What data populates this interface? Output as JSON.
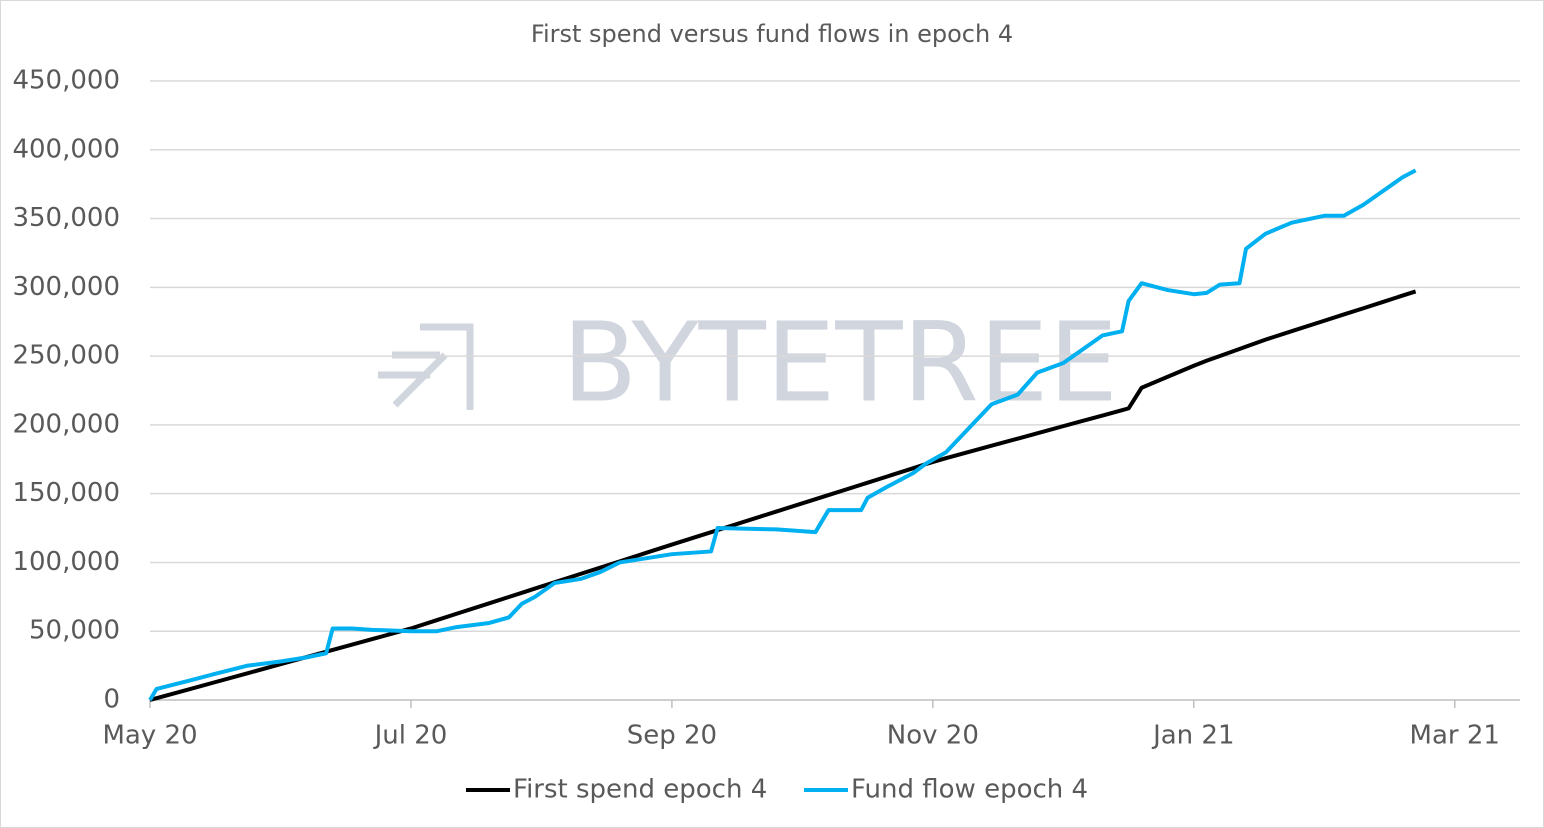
{
  "chart_data": {
    "type": "line",
    "title": "First spend versus fund flows in epoch 4",
    "watermark": "BYTETREE",
    "x": [
      0,
      0.05,
      0.3,
      0.5,
      0.75,
      1.0,
      1.2,
      1.35,
      1.4,
      1.55,
      1.7,
      2.0,
      2.2,
      2.35,
      2.6,
      2.75,
      2.85,
      2.95,
      3.1,
      3.3,
      3.45,
      3.6,
      3.8,
      4.0,
      4.3,
      4.35,
      4.8,
      5.1,
      5.2,
      5.45,
      5.5,
      5.65,
      5.85,
      5.95,
      6.1,
      6.3,
      6.45,
      6.65,
      6.8,
      7.0,
      7.15,
      7.3,
      7.45,
      7.5,
      7.6,
      7.8,
      8.0,
      8.1,
      8.2,
      8.35,
      8.4,
      8.55,
      8.75,
      9.0,
      9.15,
      9.3,
      9.45,
      9.6,
      9.7
    ],
    "series": [
      {
        "name": "First spend epoch 4",
        "color": "#000000",
        "values": [
          0,
          1300,
          7800,
          13000,
          19500,
          26000,
          31200,
          35100,
          36400,
          40300,
          44200,
          52000,
          58100,
          62700,
          70300,
          74900,
          77900,
          81000,
          85600,
          91700,
          96200,
          100800,
          106900,
          113000,
          122000,
          123500,
          137000,
          146000,
          149000,
          156500,
          158000,
          162500,
          168500,
          171600,
          175800,
          181000,
          184900,
          190000,
          193900,
          199100,
          203000,
          206800,
          210700,
          212000,
          227000,
          235000,
          243000,
          246700,
          250100,
          255200,
          256900,
          262000,
          268100,
          275700,
          280300,
          284800,
          289400,
          294000,
          297000
        ]
      },
      {
        "name": "Fund flow epoch 4",
        "color": "#00b0f0",
        "values": [
          0,
          8000,
          14000,
          19000,
          25000,
          28000,
          31000,
          34000,
          52000,
          52000,
          51000,
          50000,
          50000,
          53000,
          56000,
          60000,
          70000,
          75000,
          85000,
          88000,
          93000,
          100000,
          103000,
          106000,
          108000,
          125000,
          124000,
          122000,
          138000,
          138000,
          147000,
          155000,
          165000,
          172000,
          180000,
          200000,
          215000,
          222000,
          238000,
          245000,
          255000,
          265000,
          268000,
          290000,
          303000,
          298000,
          295000,
          296000,
          302000,
          303000,
          328000,
          339000,
          347000,
          352000,
          352000,
          360000,
          370000,
          380000,
          385000
        ]
      }
    ],
    "xlim": [
      0,
      10.5
    ],
    "xticks": [
      {
        "value": 0,
        "label": "May 20"
      },
      {
        "value": 2,
        "label": "Jul 20"
      },
      {
        "value": 4,
        "label": "Sep 20"
      },
      {
        "value": 6,
        "label": "Nov 20"
      },
      {
        "value": 8,
        "label": "Jan 21"
      },
      {
        "value": 10,
        "label": "Mar 21"
      }
    ],
    "ylim": [
      0,
      450000
    ],
    "yticks": [
      0,
      {
        "value": 50000,
        "label": "50,000"
      },
      {
        "value": 100000,
        "label": "100,000"
      },
      {
        "value": 150000,
        "label": "150,000"
      },
      {
        "value": 200000,
        "label": "200,000"
      },
      {
        "value": 250000,
        "label": "250,000"
      },
      {
        "value": 300000,
        "label": "300,000"
      },
      {
        "value": 350000,
        "label": "350,000"
      },
      {
        "value": 400000,
        "label": "400,000"
      },
      {
        "value": 450000,
        "label": "450,000"
      }
    ],
    "grid": true,
    "legend": "bottom"
  }
}
